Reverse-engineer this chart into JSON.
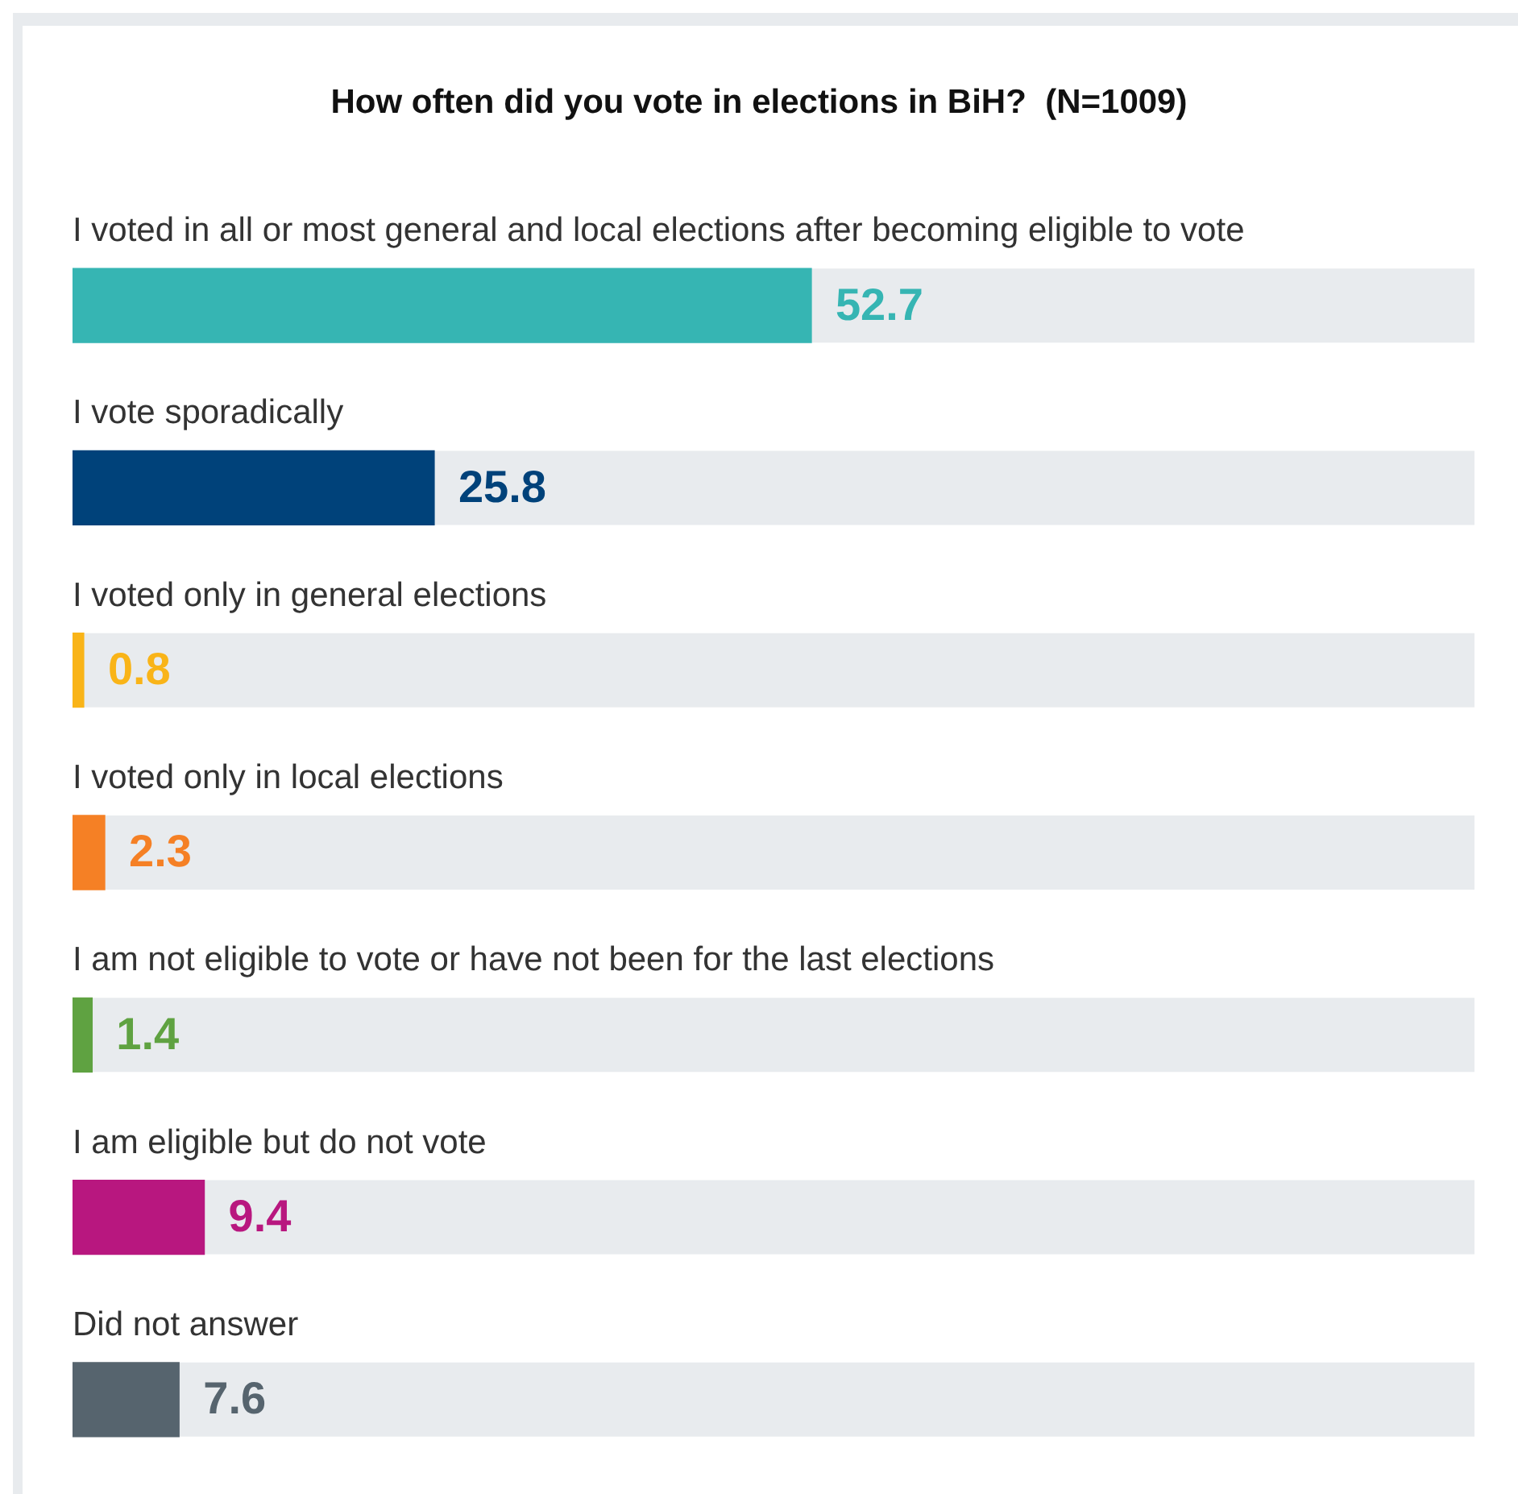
{
  "chart_data": {
    "type": "bar",
    "orientation": "horizontal",
    "title": "How often did you vote in elections in BiH?  (N=1009)",
    "categories": [
      "I voted in all or most general and local elections after becoming eligible to vote",
      "I vote sporadically",
      "I voted only in general elections",
      "I voted only in local elections",
      "I am not eligible to vote or have not been for the last elections",
      "I am eligible but do not vote",
      "Did not answer"
    ],
    "values": [
      52.7,
      25.8,
      0.8,
      2.3,
      1.4,
      9.4,
      7.6
    ],
    "colors": [
      "#36b5b3",
      "#00427a",
      "#f9b418",
      "#f58025",
      "#5fa241",
      "#b8177f",
      "#56646e"
    ],
    "xlim": [
      0,
      100
    ],
    "data_labels": true,
    "tick_labels": false,
    "legend": false
  }
}
